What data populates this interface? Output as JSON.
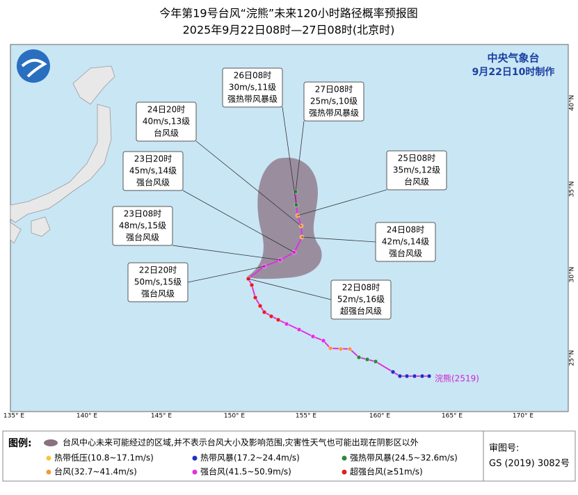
{
  "header": {
    "title": "今年第19号台风“浣熊”未来120小时路径概率预报图",
    "subtitle": "2025年9月22日08时—27日08时(北京时)"
  },
  "agency": {
    "name": "中央气象台",
    "made": "9月22日10时制作"
  },
  "callouts": [
    {
      "time": "26日08时",
      "wind": "30m/s,11级",
      "grade": "强热带风暴级"
    },
    {
      "time": "27日08时",
      "wind": "25m/s,10级",
      "grade": "强热带风暴级"
    },
    {
      "time": "24日20时",
      "wind": "40m/s,13级",
      "grade": "台风级"
    },
    {
      "time": "25日08时",
      "wind": "35m/s,12级",
      "grade": "台风级"
    },
    {
      "time": "23日20时",
      "wind": "45m/s,14级",
      "grade": "强台风级"
    },
    {
      "time": "23日08时",
      "wind": "48m/s,15级",
      "grade": "强台风级"
    },
    {
      "time": "24日08时",
      "wind": "42m/s,14级",
      "grade": "强台风级"
    },
    {
      "time": "22日20时",
      "wind": "50m/s,15级",
      "grade": "强台风级"
    },
    {
      "time": "22日08时",
      "wind": "52m/s,16级",
      "grade": "超强台风级"
    }
  ],
  "storm_label": "浣熊(2519)",
  "lon_labels": [
    "135° E",
    "140° E",
    "145° E",
    "150° E",
    "155° E",
    "160° E",
    "165° E",
    "170° E"
  ],
  "lat_labels": [
    "40°N",
    "35°N",
    "30°N",
    "25°N"
  ],
  "legend": {
    "title": "图例:",
    "cone": "台风中心未来可能经过的区域,并不表示台风大小及影响范围,灾害性天气也可能出现在阴影区以外",
    "items": [
      "热带低压(10.8~17.1m/s)",
      "热带风暴(17.2~24.4m/s)",
      "强热带风暴(24.5~32.6m/s)",
      "台风(32.7~41.4m/s)",
      "强台风(41.5~50.9m/s)",
      "超强台风(≥51m/s)"
    ]
  },
  "review": {
    "label": "审图号:",
    "number": "GS (2019) 3082号"
  }
}
